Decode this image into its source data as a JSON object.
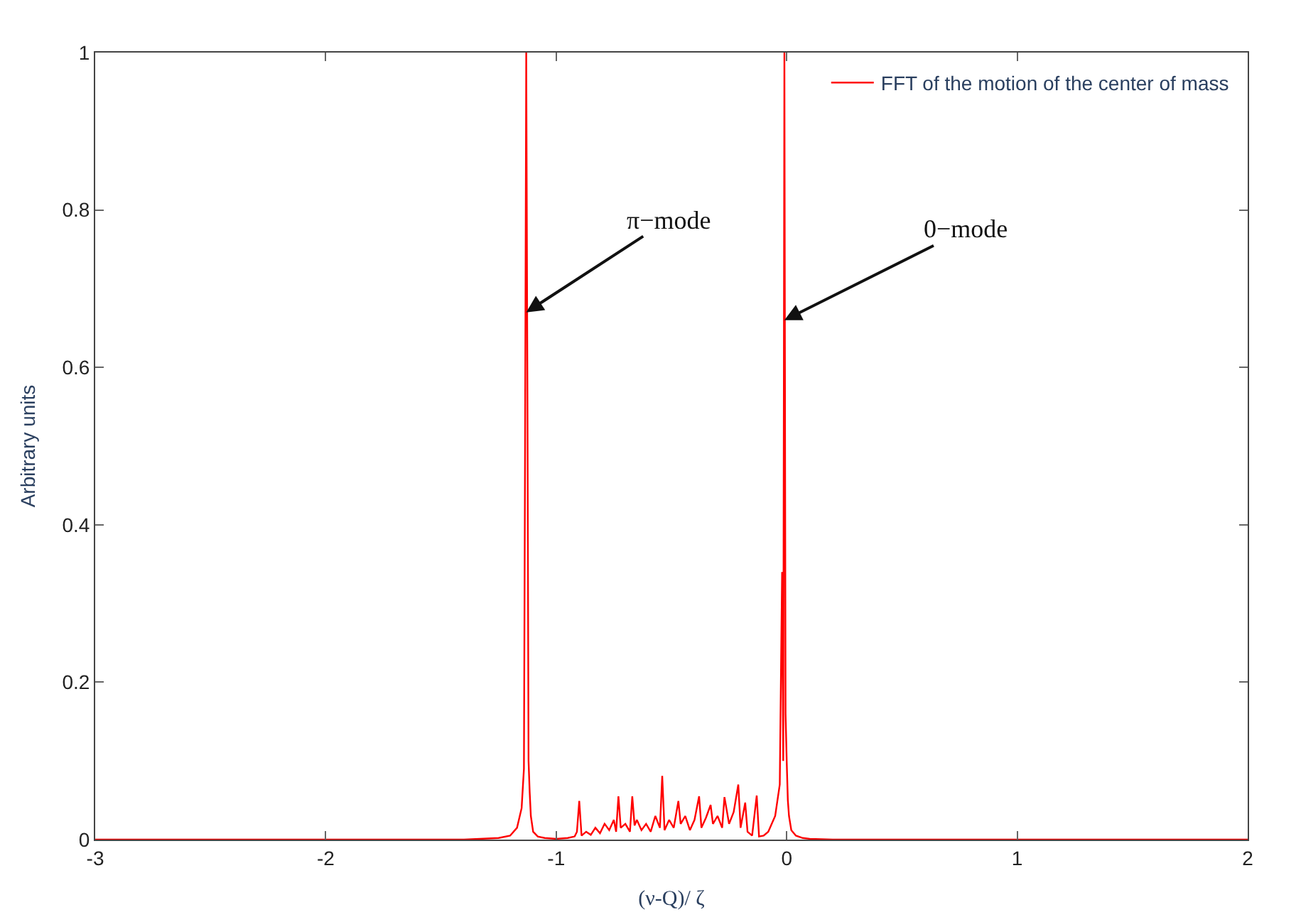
{
  "chart_data": {
    "type": "line",
    "xlabel": "(ν-Q)/ ζ",
    "ylabel": "Arbitrary units",
    "xlim": [
      -3,
      2
    ],
    "xticks": [
      -3,
      -2,
      -1,
      0,
      1,
      2
    ],
    "ylim": [
      0,
      1
    ],
    "yticks": [
      0,
      0.2,
      0.4,
      0.6,
      0.8,
      1
    ],
    "legend": "top right",
    "marker": "none",
    "line_style": "solid",
    "annotations": [
      {
        "text": "π−mode",
        "x": -1.13,
        "y": 0.67
      },
      {
        "text": "0−mode",
        "x": -0.01,
        "y": 0.66
      }
    ],
    "series": [
      {
        "name": "FFT of the motion of the center of mass",
        "color": "#ff0000",
        "x": [
          -3,
          -2,
          -1.4,
          -1.25,
          -1.2,
          -1.17,
          -1.15,
          -1.14,
          -1.135,
          -1.13,
          -1.125,
          -1.12,
          -1.115,
          -1.11,
          -1.1,
          -1.08,
          -1.05,
          -1.0,
          -0.95,
          -0.92,
          -0.91,
          -0.9,
          -0.89,
          -0.87,
          -0.85,
          -0.83,
          -0.81,
          -0.79,
          -0.77,
          -0.75,
          -0.74,
          -0.73,
          -0.72,
          -0.7,
          -0.68,
          -0.67,
          -0.66,
          -0.65,
          -0.63,
          -0.61,
          -0.59,
          -0.57,
          -0.55,
          -0.54,
          -0.53,
          -0.51,
          -0.49,
          -0.47,
          -0.46,
          -0.44,
          -0.42,
          -0.4,
          -0.38,
          -0.37,
          -0.35,
          -0.33,
          -0.32,
          -0.3,
          -0.28,
          -0.27,
          -0.25,
          -0.23,
          -0.21,
          -0.2,
          -0.18,
          -0.17,
          -0.15,
          -0.13,
          -0.12,
          -0.1,
          -0.08,
          -0.05,
          -0.03,
          -0.02,
          -0.015,
          -0.01,
          -0.005,
          0.0,
          0.005,
          0.01,
          0.02,
          0.04,
          0.07,
          0.1,
          0.2,
          0.5,
          1,
          2
        ],
        "values": [
          0,
          0,
          0,
          0.002,
          0.005,
          0.015,
          0.04,
          0.09,
          0.5,
          1,
          0.58,
          0.1,
          0.06,
          0.03,
          0.01,
          0.004,
          0.002,
          0.001,
          0.002,
          0.004,
          0.01,
          0.049,
          0.005,
          0.01,
          0.006,
          0.015,
          0.008,
          0.02,
          0.012,
          0.025,
          0.01,
          0.055,
          0.015,
          0.02,
          0.01,
          0.055,
          0.018,
          0.025,
          0.012,
          0.02,
          0.01,
          0.03,
          0.015,
          0.081,
          0.012,
          0.025,
          0.015,
          0.049,
          0.02,
          0.03,
          0.012,
          0.025,
          0.055,
          0.015,
          0.028,
          0.044,
          0.02,
          0.03,
          0.015,
          0.054,
          0.02,
          0.035,
          0.07,
          0.015,
          0.047,
          0.01,
          0.005,
          0.056,
          0.004,
          0.005,
          0.01,
          0.03,
          0.07,
          0.34,
          0.1,
          1,
          0.16,
          0.1,
          0.05,
          0.03,
          0.012,
          0.005,
          0.002,
          0.001,
          0,
          0,
          0,
          0
        ]
      }
    ]
  }
}
